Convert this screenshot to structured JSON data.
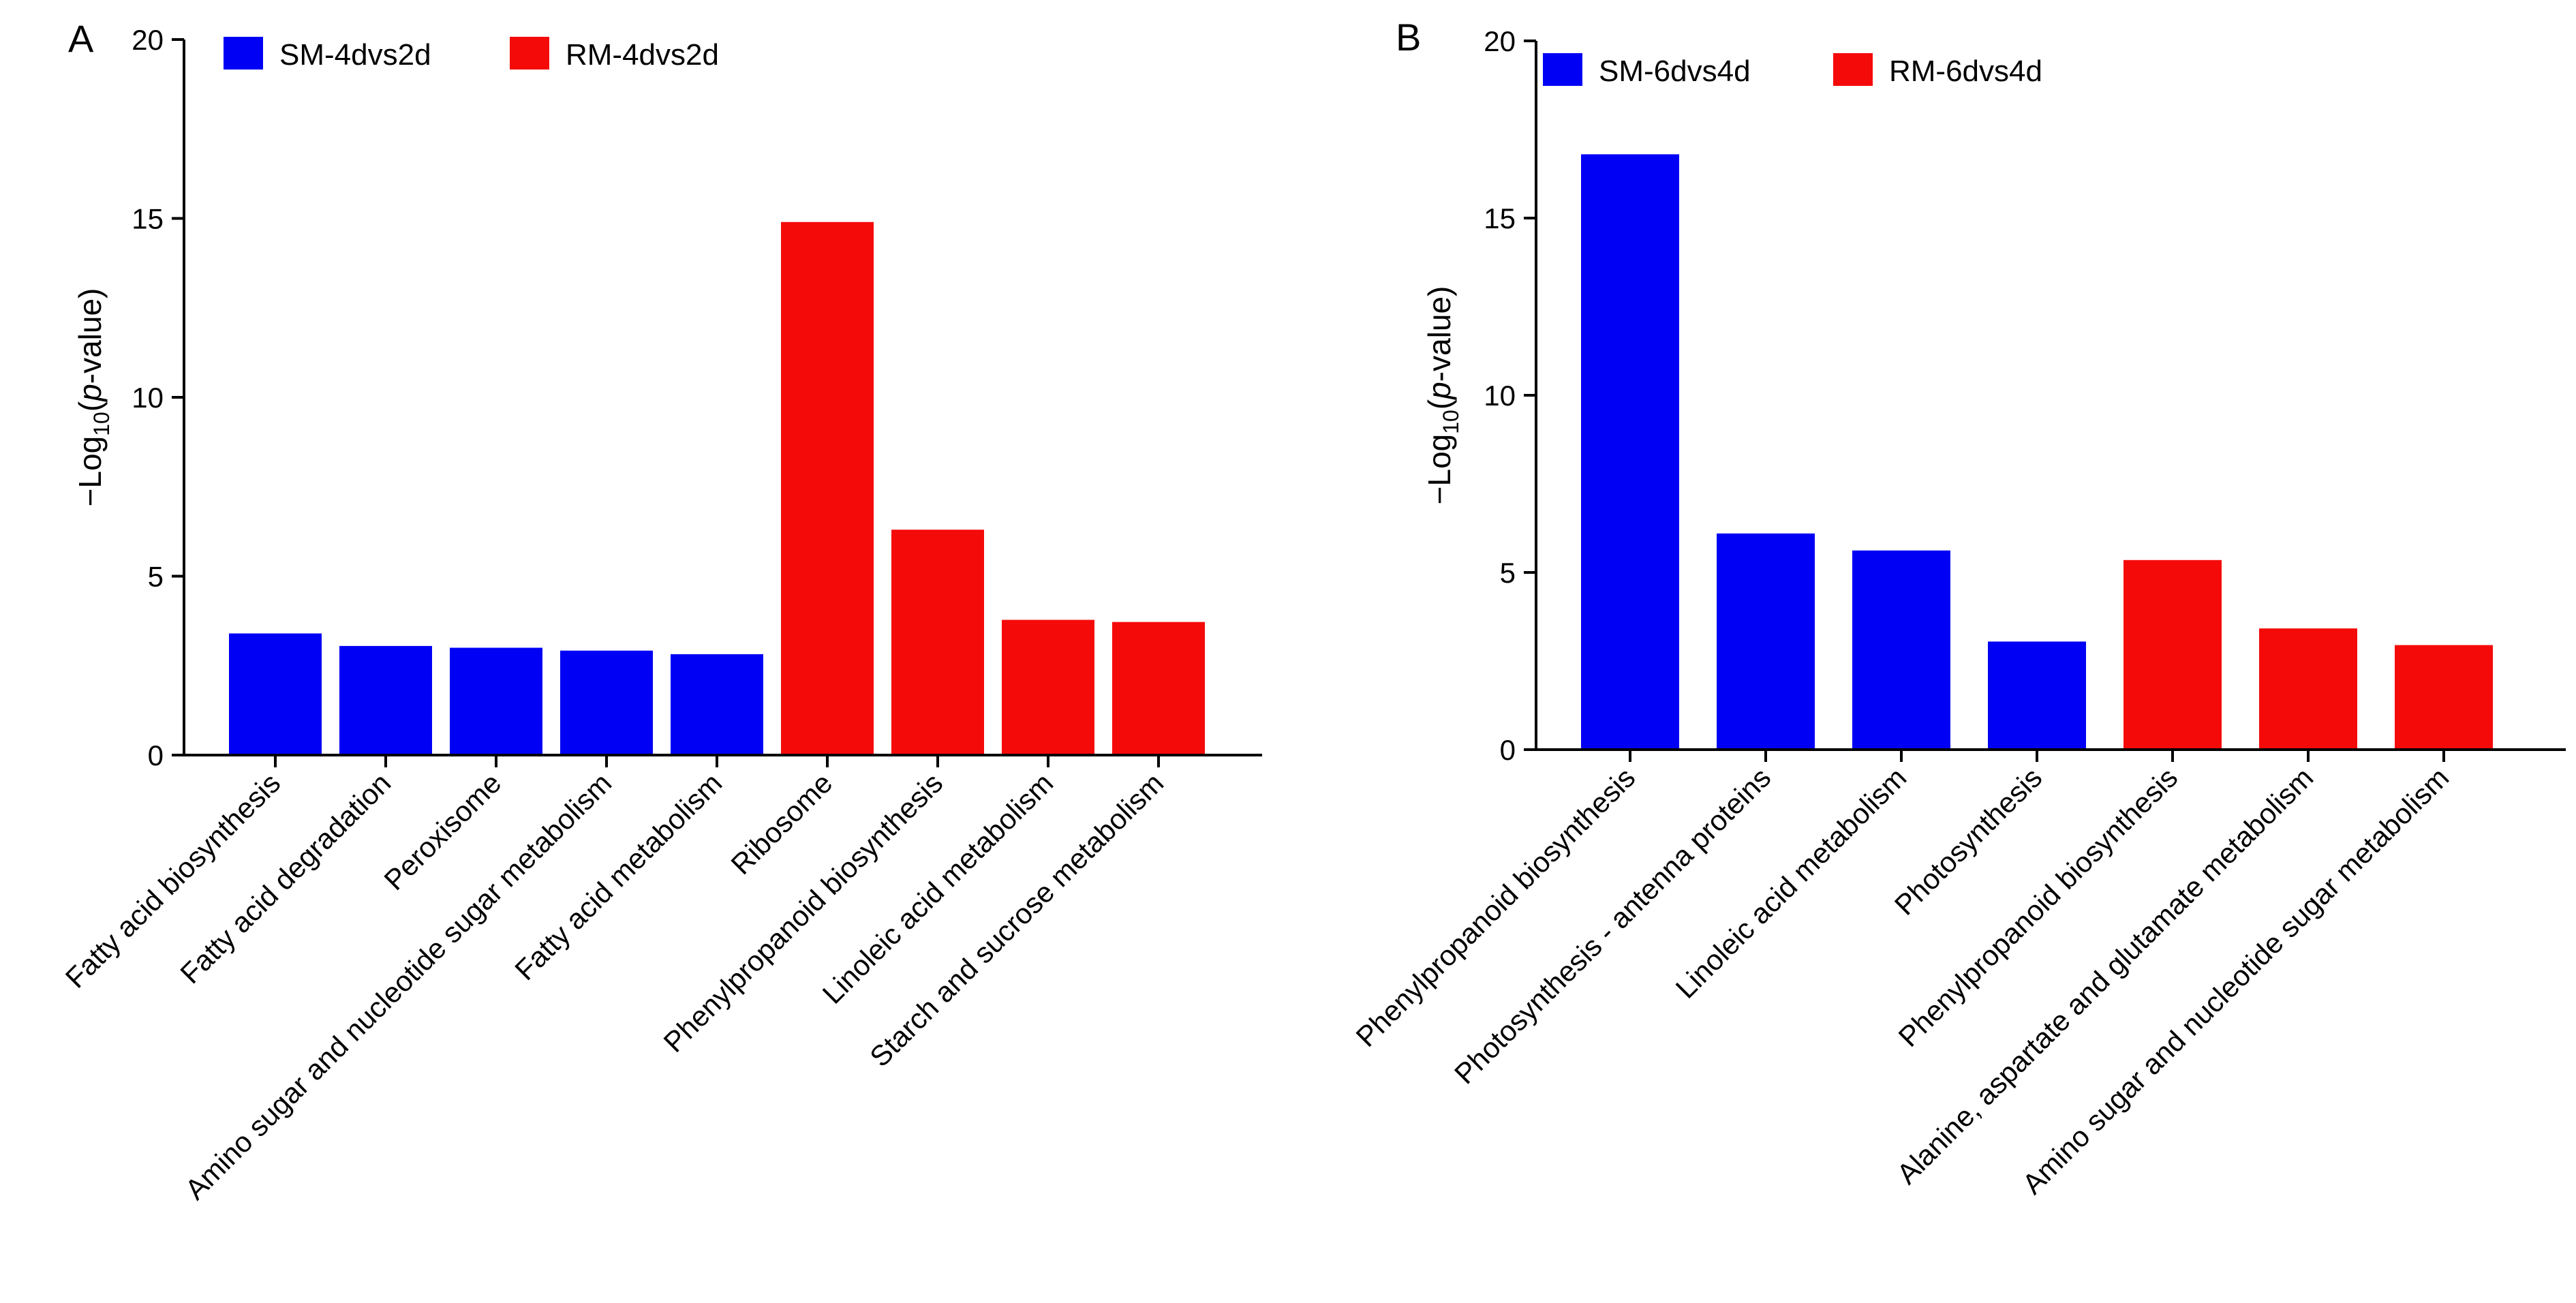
{
  "colors": {
    "series_sm": "#0000f5",
    "series_rm": "#f50a0a",
    "axis": "#000000"
  },
  "chart_data": [
    {
      "panel": "A",
      "type": "bar",
      "ylabel_prefix": "−Log",
      "ylabel_sub": "10",
      "ylabel_paren_open": "(",
      "ylabel_p": "p",
      "ylabel_suffix": "-value)",
      "ylim": [
        0,
        20
      ],
      "yticks": [
        "0",
        "5",
        "10",
        "15",
        "20"
      ],
      "legend": [
        {
          "name": "SM-4dvs2d",
          "color": "#0000f5"
        },
        {
          "name": "RM-4dvs2d",
          "color": "#f50a0a"
        }
      ],
      "categories": [
        "Fatty acid biosynthesis",
        "Fatty acid degradation",
        "Peroxisome",
        "Amino sugar and nucleotide sugar metabolism",
        "Fatty acid metabolism",
        "Ribosome",
        "Phenylpropanoid biosynthesis",
        "Linoleic acid metabolism",
        "Starch and sucrose metabolism"
      ],
      "values": [
        3.4,
        3.05,
        3.0,
        2.92,
        2.82,
        14.9,
        6.3,
        3.78,
        3.72
      ],
      "series_index": [
        0,
        0,
        0,
        0,
        0,
        1,
        1,
        1,
        1
      ]
    },
    {
      "panel": "B",
      "type": "bar",
      "ylabel_prefix": "−Log",
      "ylabel_sub": "10",
      "ylabel_paren_open": "(",
      "ylabel_p": "p",
      "ylabel_suffix": "-value)",
      "ylim": [
        0,
        20
      ],
      "yticks": [
        "0",
        "5",
        "10",
        "15",
        "20"
      ],
      "legend": [
        {
          "name": "SM-6dvs4d",
          "color": "#0000f5"
        },
        {
          "name": "RM-6dvs4d",
          "color": "#f50a0a"
        }
      ],
      "categories": [
        "Phenylpropanoid biosynthesis",
        "Photosynthesis - antenna proteins",
        "Linoleic acid metabolism",
        "Photosynthesis",
        "Phenylpropanoid biosynthesis",
        "Alanine, aspartate and glutamate metabolism",
        "Amino sugar and nucleotide sugar metabolism"
      ],
      "values": [
        16.8,
        6.1,
        5.62,
        3.05,
        5.35,
        3.42,
        2.95
      ],
      "series_index": [
        0,
        0,
        0,
        0,
        1,
        1,
        1
      ]
    }
  ]
}
